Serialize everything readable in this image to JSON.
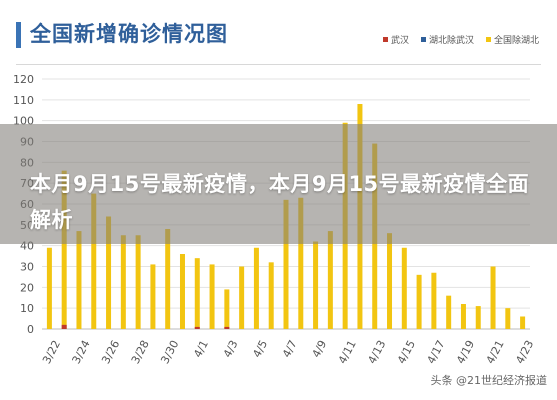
{
  "chart_data": {
    "type": "bar",
    "title": "全国新增确诊情况图",
    "categories": [
      "3/22",
      "3/23",
      "3/24",
      "3/25",
      "3/26",
      "3/27",
      "3/28",
      "3/29",
      "3/30",
      "3/31",
      "4/1",
      "4/2",
      "4/3",
      "4/4",
      "4/5",
      "4/6",
      "4/7",
      "4/8",
      "4/9",
      "4/10",
      "4/11",
      "4/12",
      "4/13",
      "4/14",
      "4/15",
      "4/16",
      "4/17",
      "4/18",
      "4/19",
      "4/20",
      "4/21",
      "4/22",
      "4/23"
    ],
    "tick_labels": [
      "3/22",
      "3/24",
      "3/26",
      "3/28",
      "3/30",
      "4/1",
      "4/3",
      "4/5",
      "4/7",
      "4/9",
      "4/11",
      "4/13",
      "4/15",
      "4/17",
      "4/19",
      "4/21",
      "4/23"
    ],
    "series": [
      {
        "name": "武汉",
        "color": "#c0392b",
        "values": [
          0,
          2,
          0,
          0,
          0,
          0,
          0,
          0,
          0,
          0,
          1,
          0,
          1,
          0,
          0,
          0,
          0,
          0,
          0,
          0,
          0,
          0,
          0,
          0,
          0,
          0,
          0,
          0,
          0,
          0,
          0,
          0,
          0
        ]
      },
      {
        "name": "湖北除武汉",
        "color": "#2f5f9a",
        "values": [
          0,
          0,
          0,
          0,
          0,
          0,
          0,
          0,
          0,
          0,
          0,
          0,
          0,
          0,
          0,
          0,
          0,
          0,
          0,
          0,
          0,
          0,
          0,
          0,
          0,
          0,
          0,
          0,
          0,
          0,
          0,
          0,
          0
        ]
      },
      {
        "name": "全国除湖北",
        "color": "#f2c511",
        "values": [
          39,
          76,
          47,
          65,
          54,
          45,
          45,
          31,
          48,
          36,
          34,
          31,
          19,
          30,
          39,
          32,
          62,
          63,
          42,
          47,
          99,
          108,
          89,
          46,
          39,
          26,
          27,
          16,
          12,
          11,
          30,
          10,
          6
        ]
      }
    ],
    "ylim": [
      0,
      120
    ],
    "yticks": [
      0,
      10,
      20,
      30,
      40,
      50,
      60,
      70,
      80,
      90,
      100,
      110,
      120
    ],
    "grid": true,
    "legend_position": "top-right"
  },
  "overlay": {
    "headline": "本月9月15号最新疫情，本月9月15号最新疫情全面解析"
  },
  "watermark": "头条 @21世纪经济报道"
}
